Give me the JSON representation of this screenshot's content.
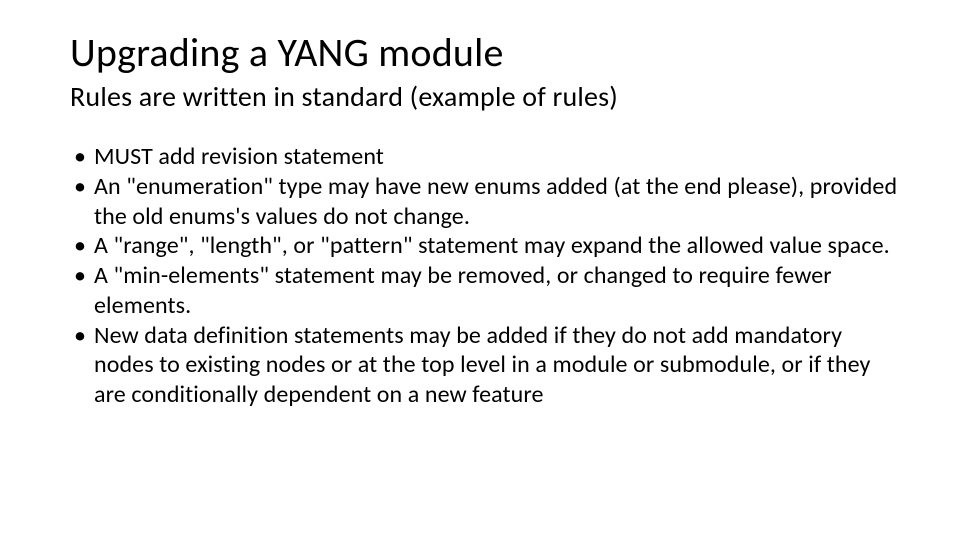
{
  "title": "Upgrading a YANG module",
  "subtitle": "Rules are written in standard (example of rules)",
  "bullets": [
    "MUST add revision statement",
    "An \"enumeration\" type may have new enums added (at the end please), provided the old enums's values do not change.",
    "A \"range\", \"length\", or \"pattern\" statement may expand the allowed value space.",
    "A \"min-elements\" statement may be removed, or changed to require fewer elements.",
    "New data definition statements may be added if they do not add mandatory nodes to existing nodes or at the top level in a module or submodule, or if they are conditionally dependent on a new feature"
  ],
  "style": {
    "background_color": "#ffffff",
    "text_color": "#000000",
    "title_fontsize": 40,
    "subtitle_fontsize": 28,
    "body_fontsize": 24,
    "font_family": "Calibri",
    "slide_width": 960,
    "slide_height": 540
  }
}
